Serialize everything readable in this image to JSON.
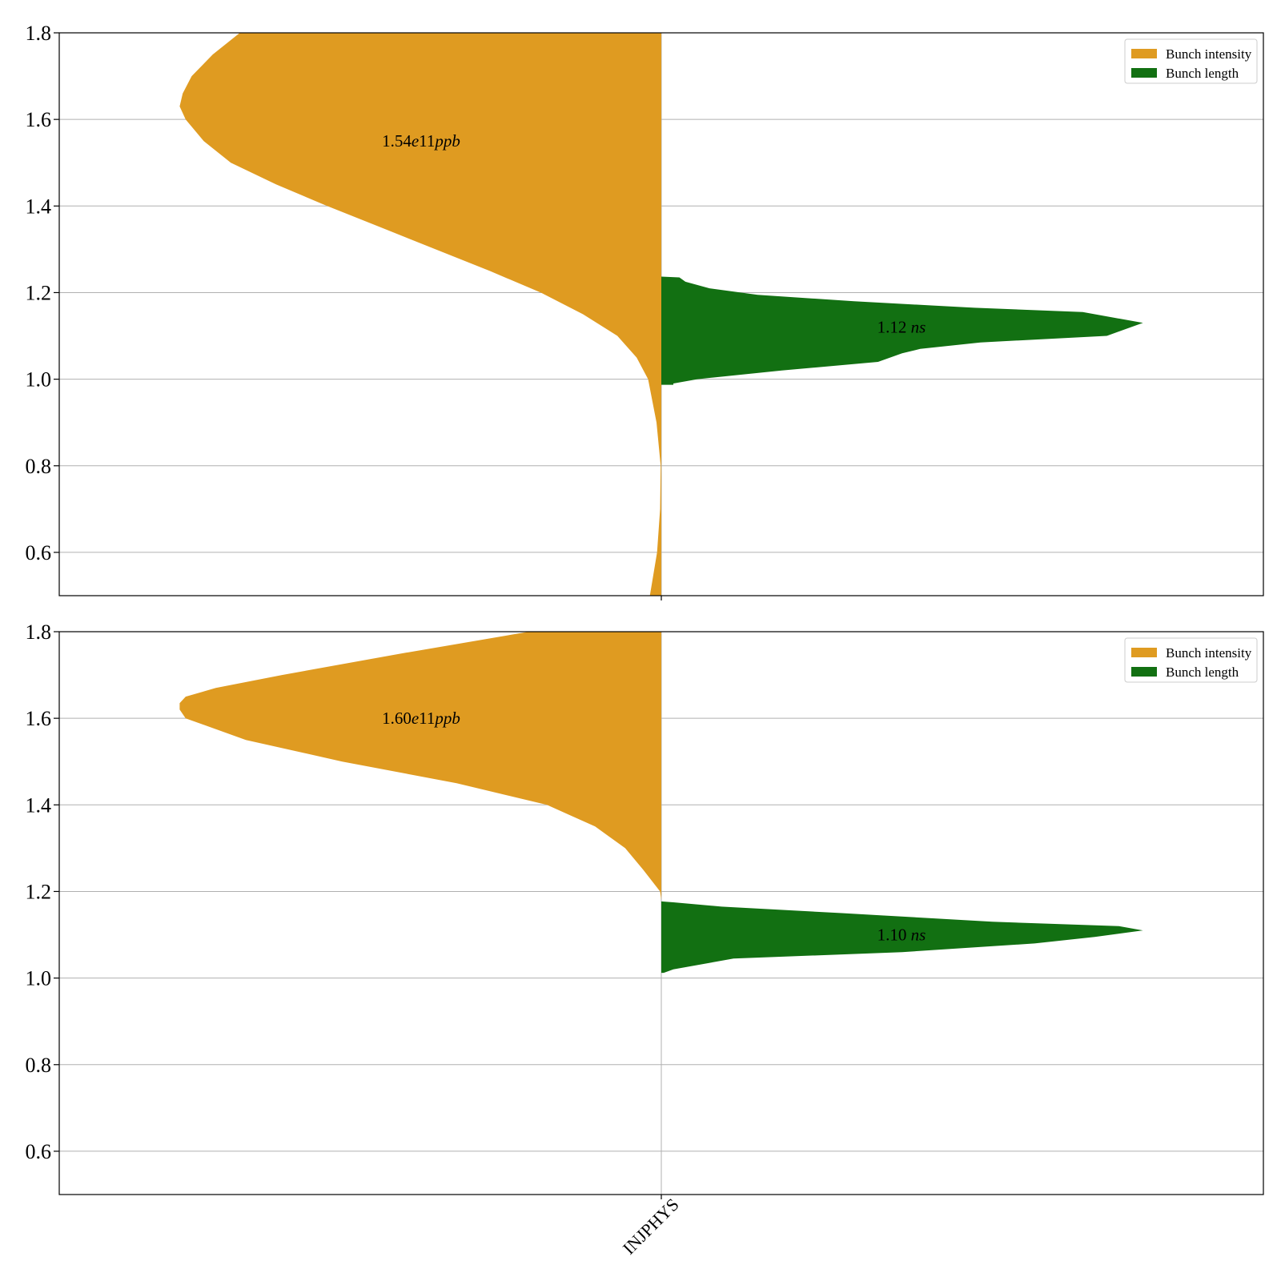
{
  "chart_data": [
    {
      "type": "violin",
      "category": "INJPHYS",
      "ylim": [
        0.5,
        1.8
      ],
      "yticks": [
        0.6,
        0.8,
        1.0,
        1.2,
        1.4,
        1.6,
        1.8
      ],
      "ytick_labels": [
        "0.6",
        "0.8",
        "1.0",
        "1.2",
        "1.4",
        "1.6",
        "1.8"
      ],
      "grid": true,
      "legend_position": "upper right",
      "series": [
        {
          "name": "Bunch intensity",
          "side": "left",
          "color": "#df9b21",
          "annotation": {
            "number": "1.54",
            "italic": "e",
            "number2": "11",
            "unit": "ppb",
            "y": 1.55
          },
          "profile_y": [
            0.5,
            0.6,
            0.7,
            0.8,
            0.9,
            1.0,
            1.05,
            1.1,
            1.15,
            1.2,
            1.25,
            1.3,
            1.35,
            1.4,
            1.45,
            1.5,
            1.55,
            1.6,
            1.63,
            1.66,
            1.7,
            1.75,
            1.8
          ],
          "profile_density": [
            0.019,
            0.007,
            0.002,
            0.001,
            0.008,
            0.022,
            0.041,
            0.073,
            0.13,
            0.2,
            0.285,
            0.375,
            0.465,
            0.555,
            0.64,
            0.715,
            0.76,
            0.79,
            0.8,
            0.795,
            0.78,
            0.745,
            0.7
          ]
        },
        {
          "name": "Bunch length",
          "side": "right",
          "color": "#127012",
          "annotation": {
            "number": "1.12",
            "italic": "",
            "number2": "",
            "unit": "ns",
            "y": 1.12
          },
          "profile_y": [
            0.987,
            0.99,
            1.0,
            1.02,
            1.04,
            1.06,
            1.07,
            1.085,
            1.1,
            1.13,
            1.155,
            1.165,
            1.18,
            1.195,
            1.21,
            1.225,
            1.235,
            1.237
          ],
          "profile_density": [
            0.02,
            0.02,
            0.06,
            0.2,
            0.36,
            0.4,
            0.43,
            0.53,
            0.74,
            0.8,
            0.7,
            0.52,
            0.32,
            0.16,
            0.08,
            0.04,
            0.03,
            0.0
          ]
        }
      ]
    },
    {
      "type": "violin",
      "category": "INJPHYS",
      "ylim": [
        0.5,
        1.8
      ],
      "yticks": [
        0.6,
        0.8,
        1.0,
        1.2,
        1.4,
        1.6,
        1.8
      ],
      "ytick_labels": [
        "0.6",
        "0.8",
        "1.0",
        "1.2",
        "1.4",
        "1.6",
        "1.8"
      ],
      "grid": true,
      "legend_position": "upper right",
      "series": [
        {
          "name": "Bunch intensity",
          "side": "left",
          "color": "#df9b21",
          "annotation": {
            "number": "1.60",
            "italic": "e",
            "number2": "11",
            "unit": "ppb",
            "y": 1.6
          },
          "profile_y": [
            1.18,
            1.2,
            1.25,
            1.3,
            1.35,
            1.4,
            1.45,
            1.5,
            1.55,
            1.58,
            1.6,
            1.62,
            1.635,
            1.65,
            1.67,
            1.7,
            1.75,
            1.8
          ],
          "profile_density": [
            0.0,
            0.002,
            0.03,
            0.06,
            0.11,
            0.19,
            0.34,
            0.53,
            0.69,
            0.75,
            0.79,
            0.8,
            0.8,
            0.79,
            0.74,
            0.63,
            0.43,
            0.22
          ]
        },
        {
          "name": "Bunch length",
          "side": "right",
          "color": "#127012",
          "annotation": {
            "number": "1.10",
            "italic": "",
            "number2": "",
            "unit": "ns",
            "y": 1.1
          },
          "profile_y": [
            1.012,
            1.02,
            1.03,
            1.045,
            1.06,
            1.08,
            1.095,
            1.11,
            1.12,
            1.13,
            1.15,
            1.165,
            1.175,
            1.177
          ],
          "profile_density": [
            0.004,
            0.02,
            0.06,
            0.12,
            0.4,
            0.62,
            0.72,
            0.8,
            0.76,
            0.55,
            0.3,
            0.1,
            0.02,
            0.0
          ]
        }
      ]
    }
  ]
}
